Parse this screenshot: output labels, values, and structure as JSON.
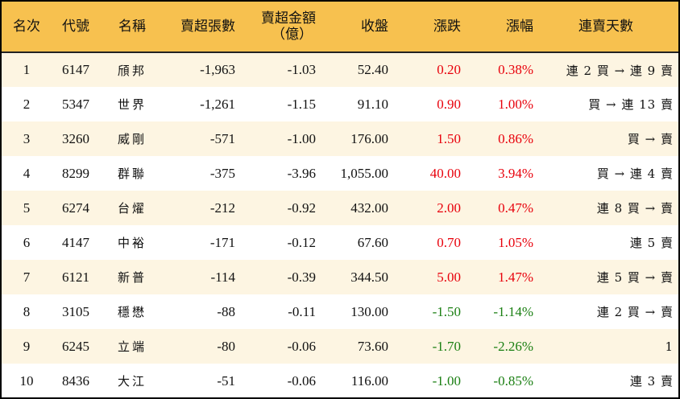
{
  "table": {
    "headers": {
      "rank": "名次",
      "code": "代號",
      "name": "名稱",
      "net_sell_lots": "賣超張數",
      "net_sell_amount_line1": "賣超金額",
      "net_sell_amount_line2": "（億）",
      "close": "收盤",
      "change": "漲跌",
      "change_pct": "漲幅",
      "streak": "連賣天數"
    },
    "rows": [
      {
        "rank": "1",
        "code": "6147",
        "name": "頎邦",
        "lots": "-1,963",
        "amount": "-1.03",
        "close": "52.40",
        "change": "0.20",
        "pct": "0.38%",
        "streak": "連 2 買 → 連 9 賣",
        "dir": "up"
      },
      {
        "rank": "2",
        "code": "5347",
        "name": "世界",
        "lots": "-1,261",
        "amount": "-1.15",
        "close": "91.10",
        "change": "0.90",
        "pct": "1.00%",
        "streak": "買 → 連 13 賣",
        "dir": "up"
      },
      {
        "rank": "3",
        "code": "3260",
        "name": "威剛",
        "lots": "-571",
        "amount": "-1.00",
        "close": "176.00",
        "change": "1.50",
        "pct": "0.86%",
        "streak": "買 → 賣",
        "dir": "up"
      },
      {
        "rank": "4",
        "code": "8299",
        "name": "群聯",
        "lots": "-375",
        "amount": "-3.96",
        "close": "1,055.00",
        "change": "40.00",
        "pct": "3.94%",
        "streak": "買 → 連 4 賣",
        "dir": "up"
      },
      {
        "rank": "5",
        "code": "6274",
        "name": "台燿",
        "lots": "-212",
        "amount": "-0.92",
        "close": "432.00",
        "change": "2.00",
        "pct": "0.47%",
        "streak": "連 8 買 → 賣",
        "dir": "up"
      },
      {
        "rank": "6",
        "code": "4147",
        "name": "中裕",
        "lots": "-171",
        "amount": "-0.12",
        "close": "67.60",
        "change": "0.70",
        "pct": "1.05%",
        "streak": "連 5 賣",
        "dir": "up"
      },
      {
        "rank": "7",
        "code": "6121",
        "name": "新普",
        "lots": "-114",
        "amount": "-0.39",
        "close": "344.50",
        "change": "5.00",
        "pct": "1.47%",
        "streak": "連 5 買 → 賣",
        "dir": "up"
      },
      {
        "rank": "8",
        "code": "3105",
        "name": "穩懋",
        "lots": "-88",
        "amount": "-0.11",
        "close": "130.00",
        "change": "-1.50",
        "pct": "-1.14%",
        "streak": "連 2 買 → 賣",
        "dir": "down"
      },
      {
        "rank": "9",
        "code": "6245",
        "name": "立端",
        "lots": "-80",
        "amount": "-0.06",
        "close": "73.60",
        "change": "-1.70",
        "pct": "-2.26%",
        "streak": "1",
        "dir": "down"
      },
      {
        "rank": "10",
        "code": "8436",
        "name": "大江",
        "lots": "-51",
        "amount": "-0.06",
        "close": "116.00",
        "change": "-1.00",
        "pct": "-0.85%",
        "streak": "連 3 賣",
        "dir": "down"
      }
    ]
  },
  "colors": {
    "header_bg": "#F7C14F",
    "alt_row_bg": "#FDF5E2",
    "up": "#E8000B",
    "down": "#1A7F12"
  }
}
